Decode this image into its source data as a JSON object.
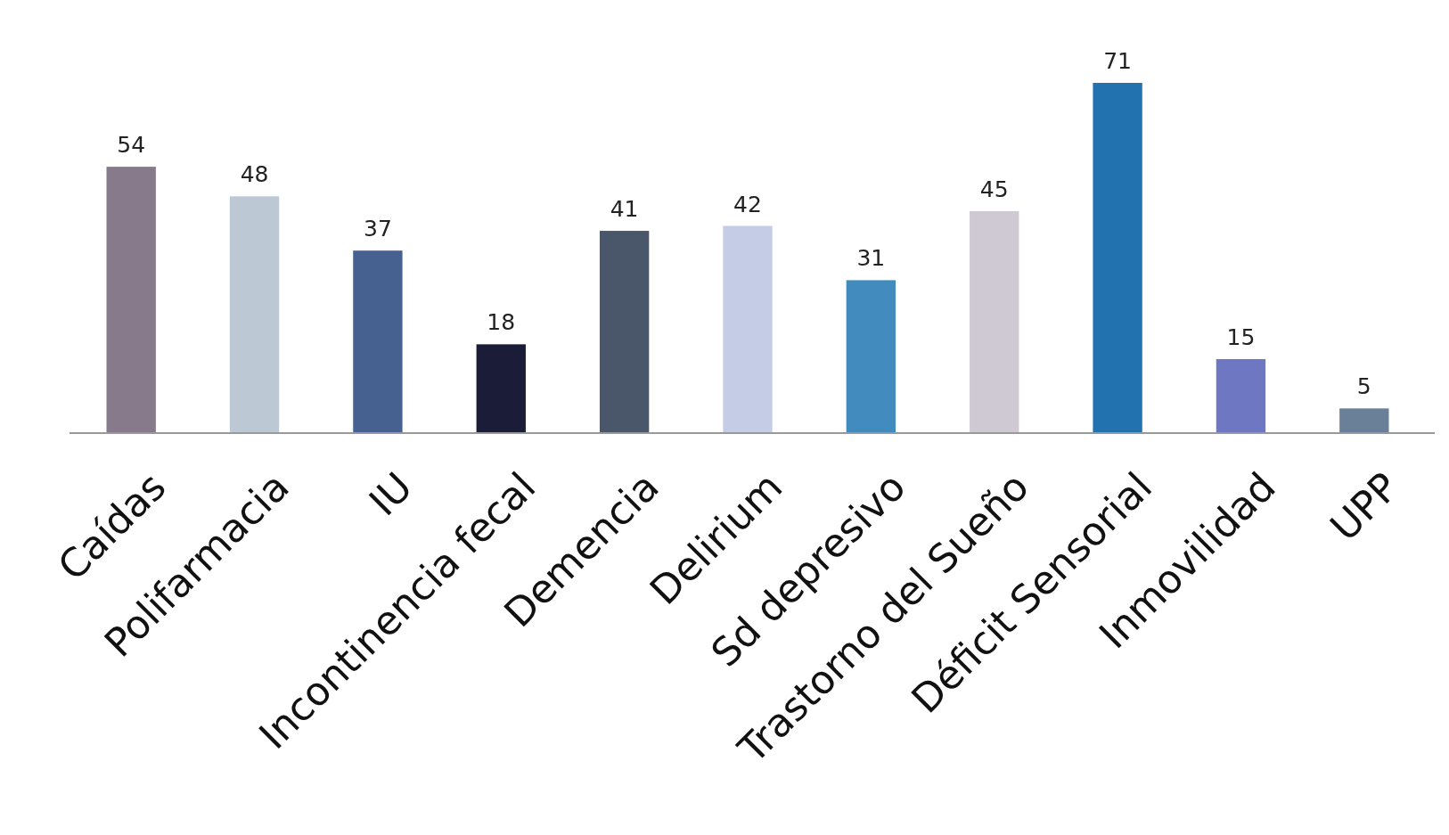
{
  "chart_data": {
    "type": "bar",
    "categories": [
      "Caídas",
      "Polifarmacia",
      "IU",
      "Incontinencia fecal",
      "Demencia",
      "Delirium",
      "Sd depresivo",
      "Trastorno del Sueño",
      "Déficit Sensorial",
      "Inmovilidad",
      "UPP"
    ],
    "values": [
      54,
      48,
      37,
      18,
      41,
      42,
      31,
      45,
      71,
      15,
      5
    ],
    "colors": [
      "#877a8a",
      "#bdc8d5",
      "#466190",
      "#1a1c38",
      "#4a5669",
      "#c5cde6",
      "#428bbf",
      "#cfc9d3",
      "#2372b0",
      "#6e78c2",
      "#6a7f98"
    ],
    "relative": false,
    "data_labels": true
  }
}
